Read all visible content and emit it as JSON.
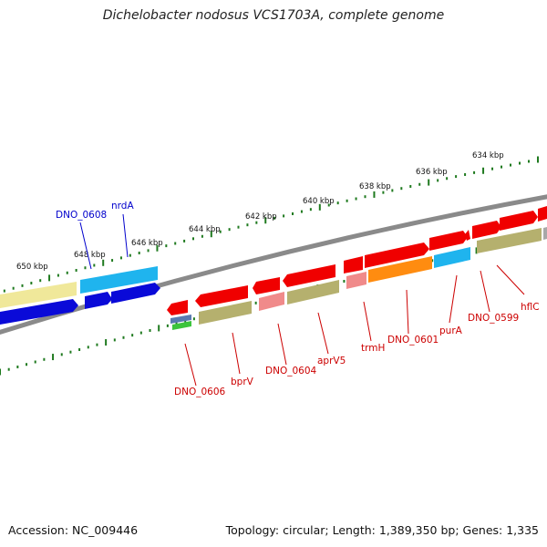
{
  "title": "Dichelobacter nodosus VCS1703A, complete genome",
  "footer": {
    "accession": "Accession: NC_009446",
    "summary": "Topology: circular; Length: 1,389,350 bp; Genes: 1,335"
  },
  "colors": {
    "backbone": "#8a8a8a",
    "tick": "#1f7a1f",
    "label_red": "#cc0000",
    "label_blue": "#0000cc",
    "gene_red": "#f00000",
    "gene_pink": "#f08a8a",
    "gene_olive": "#b5b06e",
    "gene_orange": "#ff8c10",
    "gene_cyan": "#1fb4ee",
    "gene_blue": "#0a0ad8",
    "gene_yellow": "#f0e89a",
    "gene_green": "#3cc43c",
    "gene_steel": "#5a7ab0",
    "gene_gray": "#a8a8a8"
  },
  "outer_scale_labels": [
    "634 kbp",
    "636 kbp",
    "638 kbp",
    "640 kbp",
    "642 kbp",
    "644 kbp",
    "646 kbp",
    "648 kbp",
    "650 kbp"
  ],
  "gene_labels_red": [
    "hflC",
    "DNO_0599",
    "purA",
    "DNO_0601",
    "trmH",
    "aprV5",
    "DNO_0604",
    "bprV",
    "DNO_0606"
  ],
  "gene_labels_blue": [
    "nrdA",
    "DNO_0608"
  ]
}
